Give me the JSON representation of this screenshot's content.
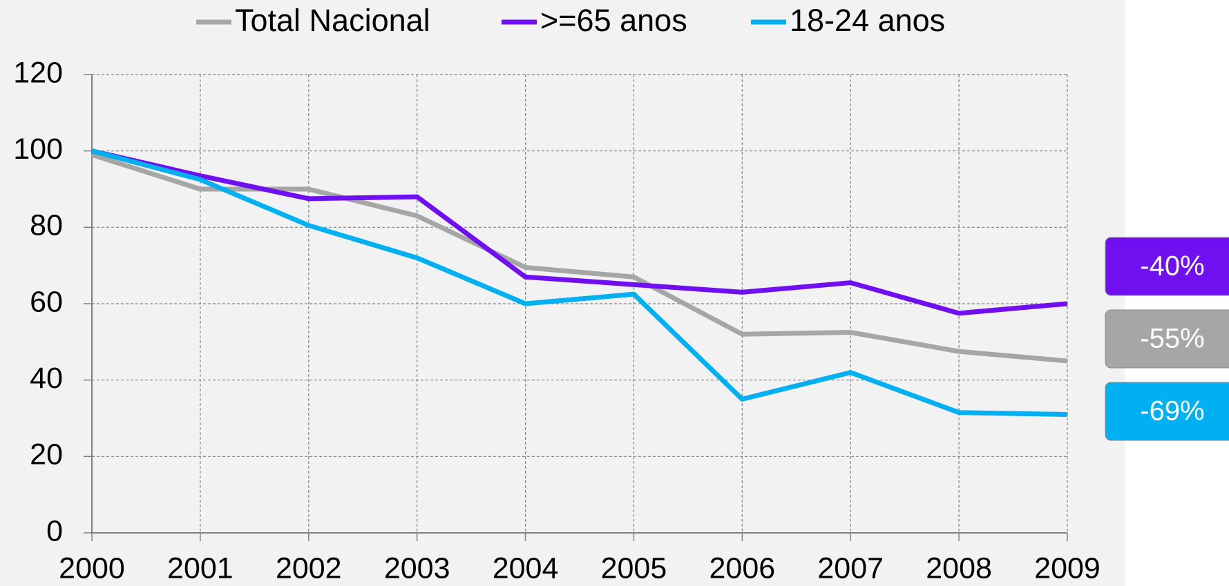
{
  "chart_data": {
    "type": "line",
    "categories": [
      "2000",
      "2001",
      "2002",
      "2003",
      "2004",
      "2005",
      "2006",
      "2007",
      "2008",
      "2009"
    ],
    "series": [
      {
        "name": "Total Nacional",
        "color": "#a6a6a6",
        "values": [
          99,
          90,
          90,
          83,
          69.5,
          67,
          52,
          52.5,
          47.5,
          45
        ]
      },
      {
        "name": ">=65 anos",
        "color": "#7010f0",
        "values": [
          100,
          93.5,
          87.5,
          88,
          67,
          65,
          63,
          65.5,
          57.5,
          60
        ]
      },
      {
        "name": "18-24 anos",
        "color": "#00b0f0",
        "values": [
          100,
          92.5,
          80.5,
          72,
          60,
          62.5,
          35,
          42,
          31.5,
          31
        ]
      }
    ],
    "ylim": [
      0,
      120
    ],
    "yticks": [
      0,
      20,
      40,
      60,
      80,
      100,
      120
    ],
    "grid": true,
    "annotations": [
      {
        "text": "-40%",
        "color": "#7010f0"
      },
      {
        "text": "-55%",
        "color": "#a6a6a6"
      },
      {
        "text": "-69%",
        "color": "#00b0f0"
      }
    ]
  }
}
